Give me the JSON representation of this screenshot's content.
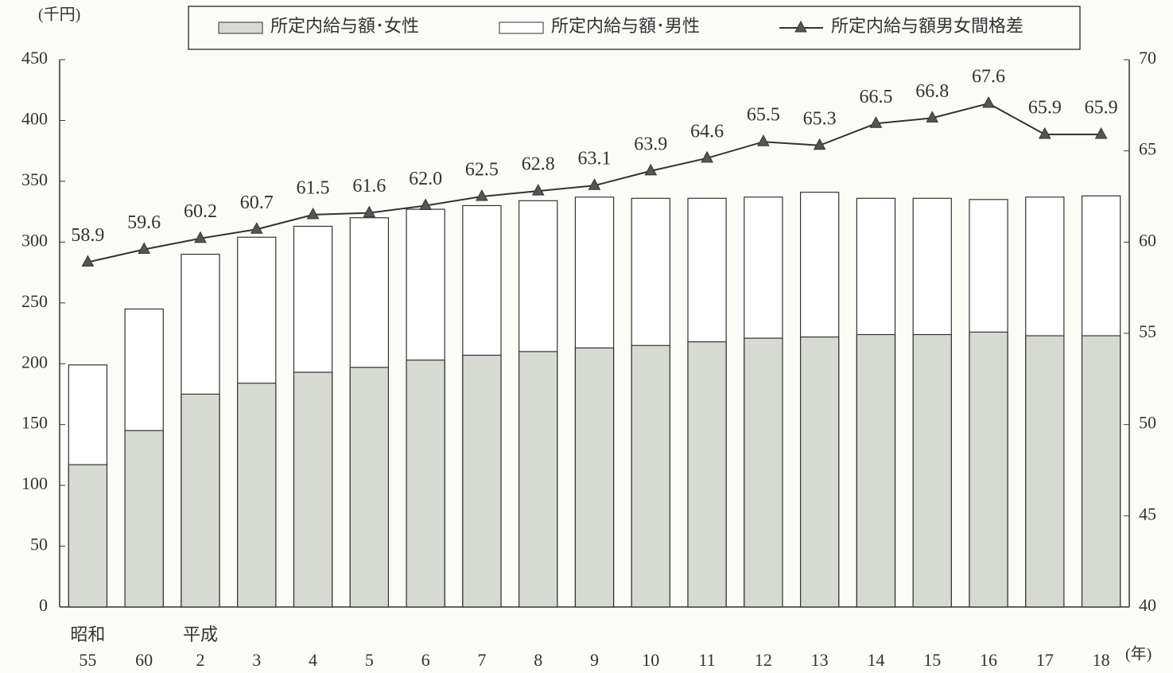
{
  "chart_data": {
    "type": "bar-line",
    "y_unit": "(千円)",
    "x_unit": "(年)",
    "categories": [
      "55",
      "60",
      "2",
      "3",
      "4",
      "5",
      "6",
      "7",
      "8",
      "9",
      "10",
      "11",
      "12",
      "13",
      "14",
      "15",
      "16",
      "17",
      "18"
    ],
    "era_labels": [
      "昭和",
      null,
      "平成",
      null,
      null,
      null,
      null,
      null,
      null,
      null,
      null,
      null,
      null,
      null,
      null,
      null,
      null,
      null,
      null
    ],
    "series": [
      {
        "name": "所定内給与額･女性",
        "color": "#d6dad2",
        "values": [
          117,
          145,
          175,
          184,
          193,
          197,
          203,
          207,
          210,
          213,
          215,
          218,
          221,
          222,
          224,
          224,
          226,
          223,
          223
        ]
      },
      {
        "name": "所定内給与額･男性",
        "color": "#ffffff",
        "values": [
          199,
          245,
          290,
          304,
          313,
          320,
          327,
          330,
          334,
          337,
          336,
          336,
          337,
          341,
          336,
          336,
          335,
          337,
          338
        ]
      },
      {
        "name": "所定内給与額男女間格差",
        "color": "#333333",
        "axis": "y2",
        "values": [
          58.9,
          59.6,
          60.2,
          60.7,
          61.5,
          61.6,
          62.0,
          62.5,
          62.8,
          63.1,
          63.9,
          64.6,
          65.5,
          65.3,
          66.5,
          66.8,
          67.6,
          65.9,
          65.9
        ],
        "value_labels": [
          "58.9",
          "59.6",
          "60.2",
          "60.7",
          "61.5",
          "61.6",
          "62.0",
          "62.5",
          "62.8",
          "63.1",
          "63.9",
          "64.6",
          "65.5",
          "65.3",
          "66.5",
          "66.8",
          "67.6",
          "65.9",
          "65.9"
        ]
      }
    ],
    "ylim": [
      0,
      450
    ],
    "yticks": [
      0,
      50,
      100,
      150,
      200,
      250,
      300,
      350,
      400,
      450
    ],
    "y2lim": [
      40,
      70
    ],
    "y2ticks": [
      40,
      45,
      50,
      55,
      60,
      65,
      70
    ],
    "legend": "top"
  }
}
